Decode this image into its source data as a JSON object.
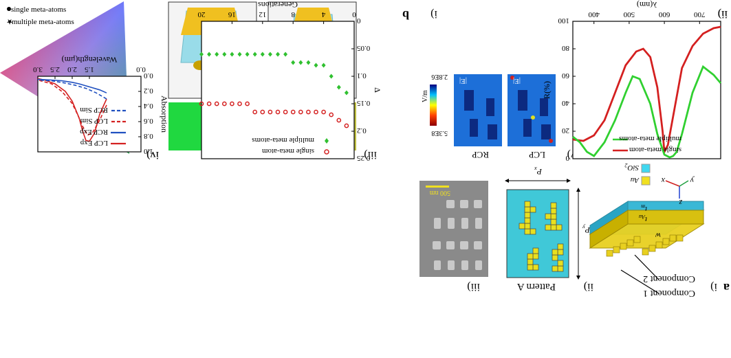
{
  "figure": {
    "panel_a": "a",
    "panel_b": "b",
    "a_i": {
      "label": "i)",
      "component1": "Component 1",
      "component2": "Component 2",
      "w": "w",
      "t_au": "t",
      "t_au_sub": "Au",
      "t_m": "t",
      "t_m_sub": "m",
      "axis_x": "x",
      "axis_y": "y",
      "axis_z": "z",
      "legend_au": "Au",
      "legend_sio2": "SiO",
      "legend_sio2_sub": "2"
    },
    "a_ii": {
      "label": "ii)",
      "caption": "Pattern A",
      "px": "P",
      "px_sub": "x",
      "py": "P",
      "py_sub": "y"
    },
    "a_iii": {
      "label": "iii)",
      "scalebar": "500 nm"
    },
    "a_v": {
      "label": "v)",
      "lcp": "LCP",
      "rcp": "RCP",
      "field": "|E|",
      "cbar_max": "2.8E6",
      "cbar_min": "5.3E8",
      "cbar_unit": "V/m"
    },
    "b_iii": {
      "label": "iii)"
    },
    "b_iv": {
      "label": "iv)",
      "legend_single": "single meta-atoms",
      "legend_multiple": "multiple meta-atoms"
    }
  },
  "chart_data": [
    {
      "type": "line",
      "panel": "iv)",
      "xlabel": "Wavelength(μm)",
      "ylabel": "Absorption",
      "xlim": [
        0.0,
        3.0
      ],
      "ylim": [
        0.0,
        1.0
      ],
      "xticks": [
        "0.0",
        "1.5",
        "2.0",
        "2.5",
        "3.0"
      ],
      "yticks": [
        "0.0",
        "0.2",
        "0.4",
        "0.6",
        "0.8",
        "1.0"
      ],
      "legend": [
        "LCP Exp",
        "RCP Exp",
        "LCP Sim",
        "RCP Sim"
      ],
      "series": [
        {
          "name": "LCP Exp",
          "color": "#d42020",
          "dash": false,
          "x": [
            1.0,
            1.2,
            1.35,
            1.5,
            1.6,
            1.7,
            1.8,
            2.0,
            2.2,
            2.5,
            2.8,
            3.0
          ],
          "y": [
            0.3,
            0.5,
            0.75,
            0.86,
            0.85,
            0.72,
            0.55,
            0.33,
            0.2,
            0.1,
            0.05,
            0.03
          ]
        },
        {
          "name": "RCP Exp",
          "color": "#2050c0",
          "dash": false,
          "x": [
            1.0,
            1.2,
            1.5,
            1.8,
            2.0,
            2.3,
            2.6,
            3.0
          ],
          "y": [
            0.22,
            0.18,
            0.14,
            0.1,
            0.08,
            0.06,
            0.05,
            0.04
          ]
        },
        {
          "name": "LCP Sim",
          "color": "#d42020",
          "dash": true,
          "x": [
            1.0,
            1.2,
            1.4,
            1.55,
            1.7,
            1.85,
            2.0,
            2.3,
            2.6,
            3.0
          ],
          "y": [
            0.38,
            0.58,
            0.74,
            0.78,
            0.66,
            0.5,
            0.36,
            0.2,
            0.1,
            0.05
          ]
        },
        {
          "name": "RCP Sim",
          "color": "#2050c0",
          "dash": true,
          "x": [
            1.0,
            1.3,
            1.6,
            1.9,
            2.2,
            2.6,
            3.0
          ],
          "y": [
            0.3,
            0.22,
            0.16,
            0.12,
            0.09,
            0.06,
            0.05
          ]
        }
      ]
    },
    {
      "type": "scatter",
      "panel": "i)",
      "xlabel": "Generations",
      "ylabel": "Δ",
      "xlim": [
        0,
        20
      ],
      "ylim": [
        0.0,
        0.25
      ],
      "xticks": [
        "0",
        "4",
        "8",
        "12",
        "16",
        "20"
      ],
      "yticks": [
        "0",
        "0.05",
        "0.1",
        "0.15",
        "0.2",
        "0.25"
      ],
      "legend": [
        "single meta-atom",
        "multiple meta-atoms"
      ],
      "series": [
        {
          "name": "single meta-atom",
          "color": "#d42020",
          "marker": "circle",
          "x": [
            1,
            2,
            3,
            4,
            5,
            6,
            7,
            8,
            9,
            10,
            11,
            12,
            13,
            14,
            15,
            16,
            17,
            18,
            19,
            20
          ],
          "y": [
            0.19,
            0.18,
            0.17,
            0.165,
            0.165,
            0.165,
            0.165,
            0.165,
            0.165,
            0.165,
            0.165,
            0.165,
            0.165,
            0.15,
            0.15,
            0.15,
            0.15,
            0.15,
            0.15,
            0.15
          ]
        },
        {
          "name": "multiple meta-atoms",
          "color": "#30c030",
          "marker": "diamond",
          "x": [
            1,
            2,
            3,
            4,
            5,
            6,
            7,
            8,
            9,
            10,
            11,
            12,
            13,
            14,
            15,
            16,
            17,
            18,
            19,
            20
          ],
          "y": [
            0.13,
            0.12,
            0.1,
            0.08,
            0.08,
            0.075,
            0.075,
            0.075,
            0.06,
            0.06,
            0.06,
            0.06,
            0.06,
            0.06,
            0.06,
            0.06,
            0.06,
            0.06,
            0.06,
            0.06
          ]
        }
      ]
    },
    {
      "type": "line",
      "panel": "ii)",
      "xlabel": "λ(nm)",
      "ylabel": "R(%)",
      "xlim": [
        340,
        760
      ],
      "ylim": [
        0,
        100
      ],
      "xticks": [
        "400",
        "500",
        "600",
        "700"
      ],
      "yticks": [
        "0",
        "20",
        "40",
        "60",
        "80",
        "100"
      ],
      "legend": [
        "single meta-atom",
        "multiple meta-atoms"
      ],
      "series": [
        {
          "name": "single meta-atom",
          "color": "#d42020",
          "x": [
            340,
            370,
            400,
            430,
            460,
            490,
            520,
            540,
            560,
            580,
            595,
            600,
            610,
            630,
            650,
            680,
            710,
            740,
            760
          ],
          "y": [
            14,
            13,
            17,
            28,
            48,
            68,
            78,
            80,
            74,
            52,
            20,
            5,
            10,
            38,
            66,
            82,
            91,
            95,
            96
          ]
        },
        {
          "name": "multiple meta-atoms",
          "color": "#30d030",
          "x": [
            340,
            360,
            380,
            400,
            430,
            460,
            490,
            510,
            530,
            560,
            580,
            600,
            615,
            625,
            635,
            650,
            680,
            710,
            740,
            760
          ],
          "y": [
            16,
            12,
            5,
            2,
            12,
            28,
            48,
            60,
            58,
            40,
            18,
            3,
            1,
            2,
            5,
            18,
            48,
            67,
            61,
            55
          ]
        }
      ]
    }
  ]
}
